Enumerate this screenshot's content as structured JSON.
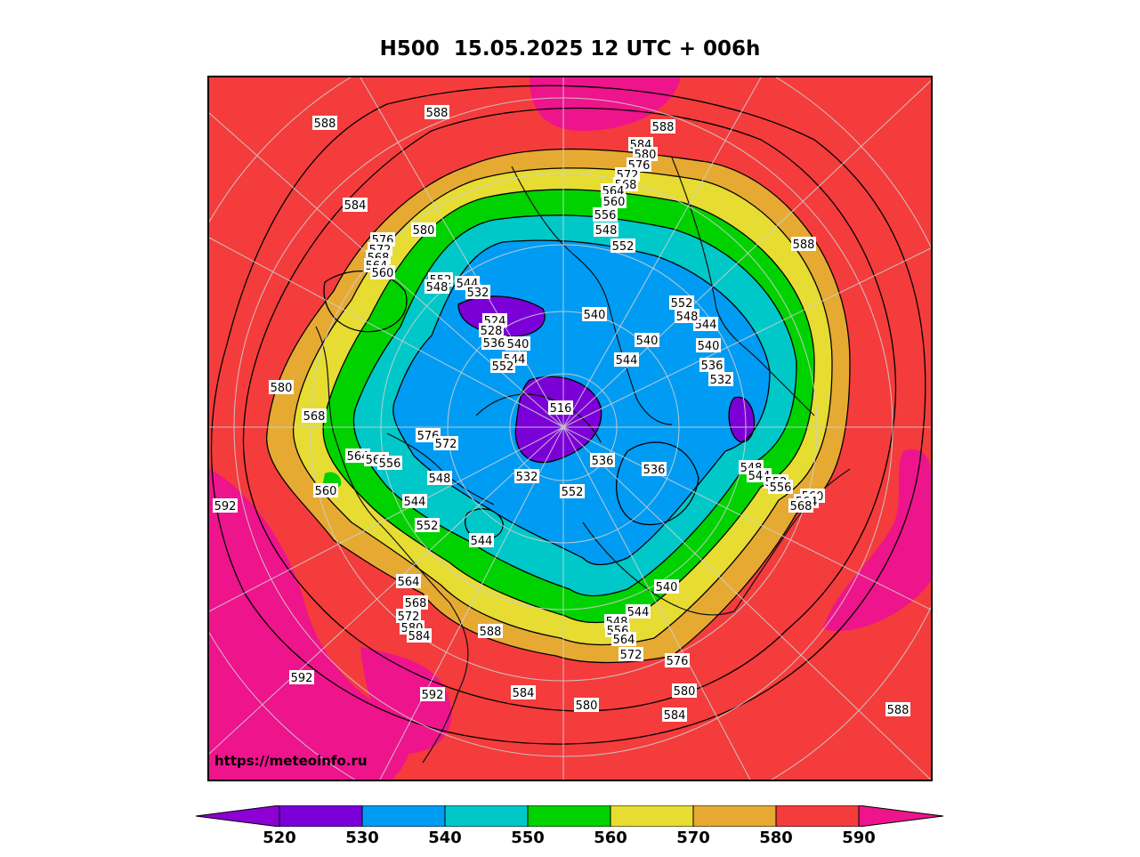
{
  "title": "H500  15.05.2025 12 UTC + 006h",
  "watermark": "https://meteoinfo.ru",
  "colorbar": {
    "ticks": [
      "520",
      "530",
      "540",
      "550",
      "560",
      "570",
      "580",
      "590"
    ],
    "colors": [
      "#8c00d4",
      "#7b00d8",
      "#009cf4",
      "#00c8c8",
      "#00d200",
      "#e6dc32",
      "#e6aa32",
      "#f43c3c",
      "#ee148c"
    ]
  },
  "contour_labels": [
    "588",
    "588",
    "588",
    "584",
    "584",
    "580",
    "576",
    "572",
    "568",
    "564",
    "560",
    "556",
    "548",
    "552",
    "580",
    "576",
    "572",
    "568",
    "564",
    "560",
    "552",
    "548",
    "544",
    "532",
    "524",
    "528",
    "536",
    "540",
    "544",
    "552",
    "540",
    "540",
    "544",
    "540",
    "536",
    "532",
    "552",
    "548",
    "544",
    "588",
    "580",
    "568",
    "576",
    "572",
    "564",
    "560",
    "556",
    "560",
    "548",
    "544",
    "552",
    "544",
    "516",
    "536",
    "536",
    "532",
    "552",
    "548",
    "544",
    "552",
    "556",
    "560",
    "564",
    "568",
    "592",
    "564",
    "568",
    "572",
    "580",
    "584",
    "588",
    "544",
    "540",
    "548",
    "556",
    "564",
    "572",
    "576",
    "580",
    "584",
    "592",
    "592",
    "584",
    "580",
    "588"
  ]
}
